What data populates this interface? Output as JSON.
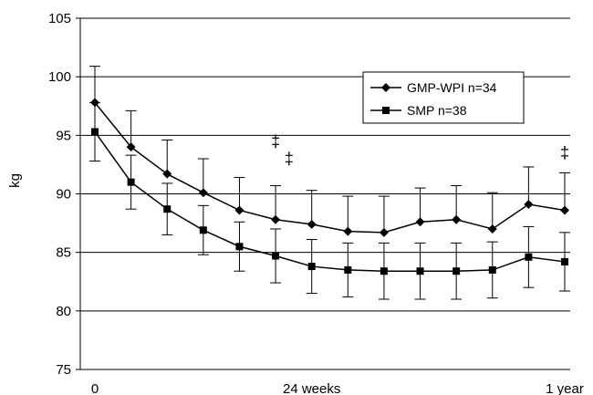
{
  "chart_data": {
    "type": "line",
    "ylabel": "kg",
    "xlabel": "",
    "ylim": [
      75,
      105
    ],
    "y_ticks": [
      75,
      80,
      85,
      90,
      95,
      100,
      105
    ],
    "x_tick_labels": [
      "0",
      "24 weeks",
      "1 year"
    ],
    "x_tick_positions": [
      0,
      24,
      52
    ],
    "xlim": [
      0,
      52
    ],
    "grid": "horizontal",
    "legend_placement": "top-right",
    "x": [
      0,
      4,
      8,
      12,
      16,
      20,
      24,
      28,
      32,
      36,
      40,
      44,
      48,
      52
    ],
    "series": [
      {
        "name": "GMP-WPI n=34",
        "marker": "diamond",
        "color": "#000000",
        "values": [
          97.8,
          94.0,
          91.7,
          90.1,
          88.6,
          87.8,
          87.4,
          86.8,
          86.7,
          87.6,
          87.8,
          87.0,
          89.1,
          88.6
        ],
        "error": [
          3.1,
          3.1,
          2.9,
          2.9,
          2.8,
          2.9,
          2.9,
          3.0,
          3.1,
          2.9,
          2.9,
          3.1,
          3.2,
          3.2
        ]
      },
      {
        "name": "SMP n=38",
        "marker": "square",
        "color": "#000000",
        "values": [
          95.3,
          91.0,
          88.7,
          86.9,
          85.5,
          84.7,
          83.8,
          83.5,
          83.4,
          83.4,
          83.4,
          83.5,
          84.6,
          84.2
        ],
        "error": [
          2.5,
          2.3,
          2.2,
          2.1,
          2.1,
          2.3,
          2.3,
          2.3,
          2.4,
          2.4,
          2.4,
          2.4,
          2.6,
          2.5
        ]
      }
    ],
    "annotations": [
      {
        "text": "‡",
        "x": 20,
        "y": 94.5
      },
      {
        "text": "‡",
        "x": 21.5,
        "y": 93.0
      },
      {
        "text": "‡",
        "x": 52,
        "y": 93.5
      }
    ]
  }
}
